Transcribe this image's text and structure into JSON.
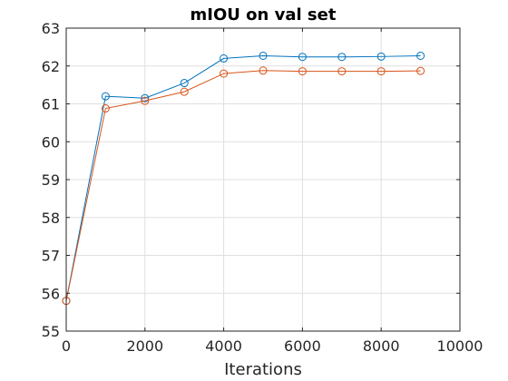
{
  "chart_data": {
    "type": "line",
    "title": "mIOU on val set",
    "xlabel": "Iterations",
    "ylabel": "",
    "xlim": [
      0,
      10000
    ],
    "ylim": [
      55,
      63
    ],
    "x_ticks": [
      0,
      2000,
      4000,
      6000,
      8000,
      10000
    ],
    "y_ticks": [
      55,
      56,
      57,
      58,
      59,
      60,
      61,
      62,
      63
    ],
    "grid": true,
    "legend": "none",
    "marker": "circle",
    "x": [
      0,
      1000,
      2000,
      3000,
      4000,
      5000,
      6000,
      7000,
      8000,
      9000
    ],
    "series": [
      {
        "color": "#0072BD",
        "values": [
          55.8,
          61.2,
          61.15,
          61.55,
          62.2,
          62.27,
          62.24,
          62.24,
          62.25,
          62.27
        ]
      },
      {
        "color": "#D95319",
        "values": [
          55.8,
          60.88,
          61.08,
          61.32,
          61.8,
          61.88,
          61.86,
          61.86,
          61.86,
          61.87
        ]
      }
    ]
  }
}
